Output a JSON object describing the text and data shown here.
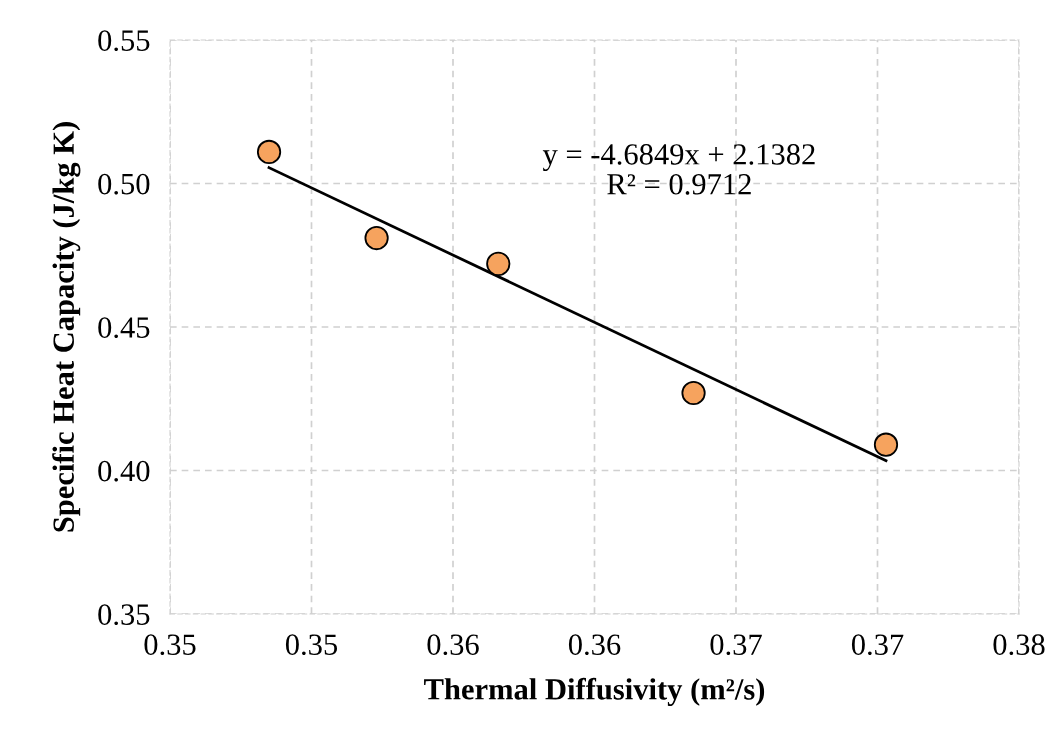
{
  "chart_data": {
    "type": "scatter",
    "xlabel": "Thermal Diffusivity (m²/s)",
    "ylabel": "Specific Heat Capacity (J/kg K)",
    "x": [
      0.3485,
      0.3523,
      0.3566,
      0.3635,
      0.3703
    ],
    "series": [
      {
        "color": "#f6a35e",
        "values": [
          0.511,
          0.481,
          0.472,
          0.427,
          0.409
        ]
      },
      {
        "type": "line",
        "marker": "none",
        "color": "#000000",
        "x": [
          0.3485,
          0.3703
        ],
        "values": [
          0.5055,
          0.4034
        ]
      }
    ],
    "xlim": [
      0.345,
      0.375
    ],
    "xticks": [
      {
        "value": 0.345,
        "label": "0.35"
      },
      {
        "value": 0.35,
        "label": "0.35"
      },
      {
        "value": 0.355,
        "label": "0.36"
      },
      {
        "value": 0.36,
        "label": "0.36"
      },
      {
        "value": 0.365,
        "label": "0.37"
      },
      {
        "value": 0.37,
        "label": "0.37"
      },
      {
        "value": 0.375,
        "label": "0.38"
      }
    ],
    "ylim": [
      0.35,
      0.55
    ],
    "yticks": [
      {
        "value": 0.35,
        "label": "0.35"
      },
      {
        "value": 0.4,
        "label": "0.40"
      },
      {
        "value": 0.45,
        "label": "0.45"
      },
      {
        "value": 0.5,
        "label": "0.50"
      },
      {
        "value": 0.55,
        "label": "0.55"
      }
    ],
    "annotations": [
      "y = -4.6849x + 2.1382",
      "R² = 0.9712"
    ],
    "grid": true,
    "marker": "circle",
    "legend": false
  }
}
